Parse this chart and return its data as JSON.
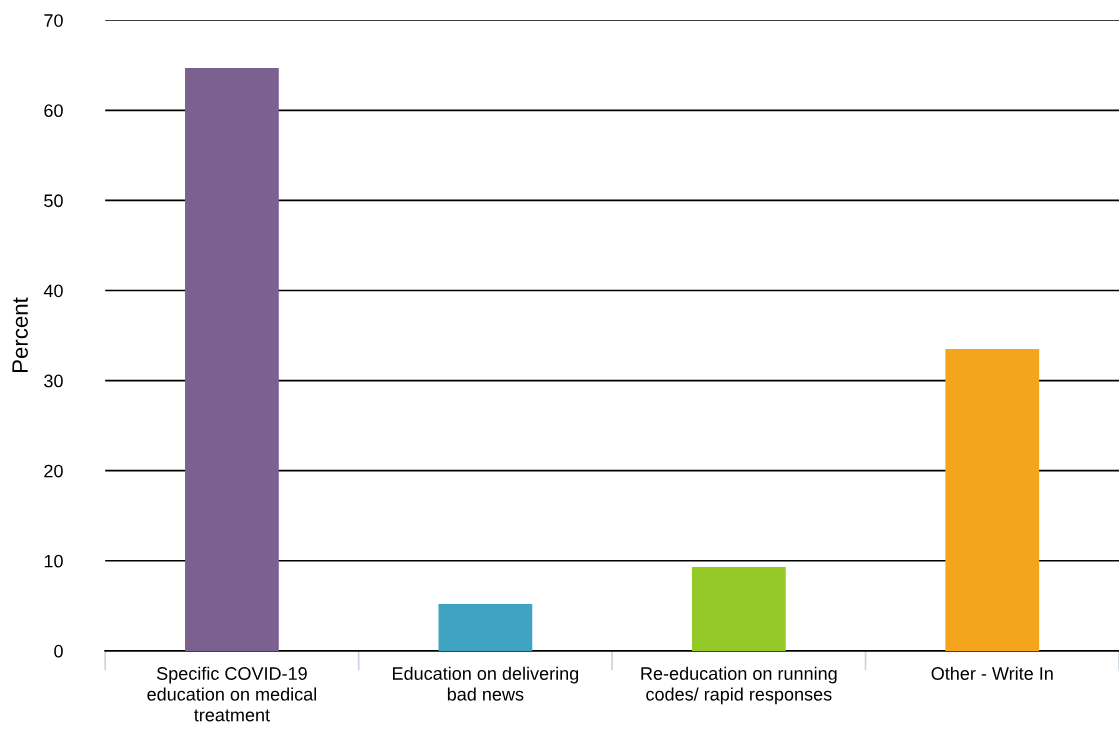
{
  "chart_data": {
    "type": "bar",
    "ylabel": "Percent",
    "categories": [
      "Specific COVID-19 education on medical treatment",
      "Education on delivering bad news",
      "Re-education on running codes/ rapid responses",
      "Other - Write In"
    ],
    "values": [
      64.7,
      5.2,
      9.3,
      33.5
    ],
    "colors": [
      "#7b6190",
      "#41a3c2",
      "#95c928",
      "#f4a51c"
    ],
    "ylim": [
      0,
      70
    ],
    "yticks": [
      0,
      10,
      20,
      30,
      40,
      50,
      60,
      70
    ],
    "grid": "y",
    "legend": false
  }
}
